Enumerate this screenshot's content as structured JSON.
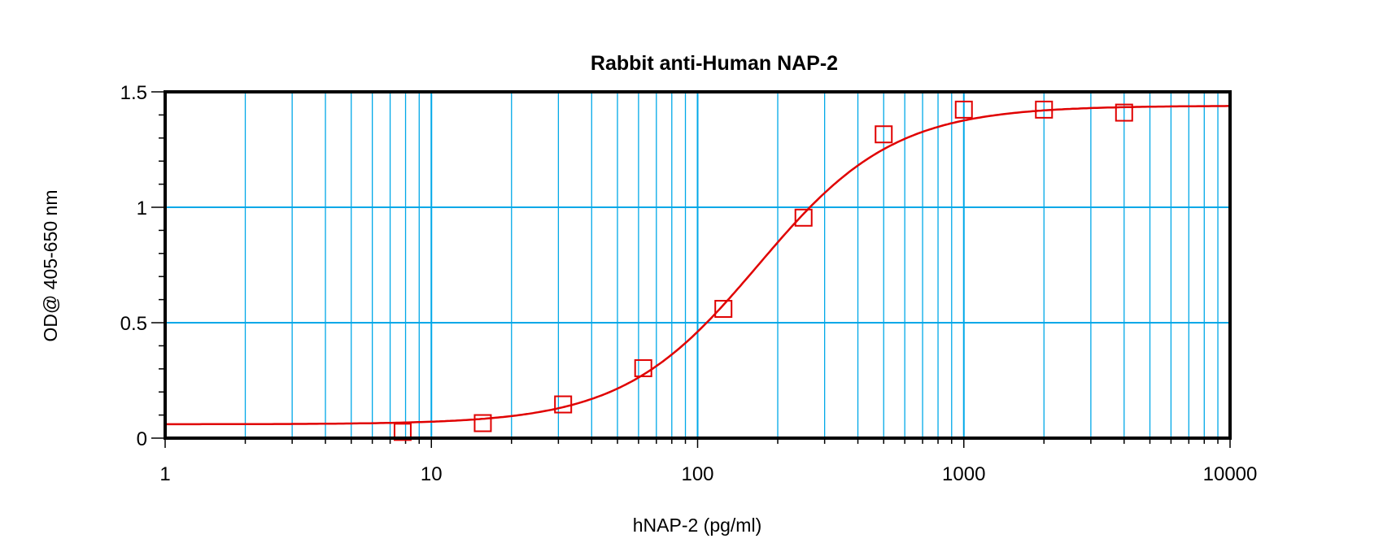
{
  "chart_data": {
    "type": "scatter",
    "title": "Rabbit anti-Human NAP-2",
    "xlabel": "hNAP-2 (pg/ml)",
    "ylabel": "OD@ 405-650 nm",
    "xscale": "log",
    "xlim": [
      1,
      10000
    ],
    "ylim": [
      0,
      1.5
    ],
    "xticks": [
      "1",
      "10",
      "100",
      "1000",
      "10000"
    ],
    "yticks": [
      "0",
      "0.5",
      "1",
      "1.5"
    ],
    "grid": true,
    "colors": {
      "series": "#e00000",
      "grid": "#00a8e8",
      "axis": "#000000"
    },
    "series": [
      {
        "marker": "open-square",
        "x": [
          7.8,
          15.6,
          31.25,
          62.5,
          125,
          250,
          500,
          1000,
          2000,
          4000
        ],
        "y": [
          0.027,
          0.065,
          0.146,
          0.303,
          0.56,
          0.955,
          1.316,
          1.423,
          1.423,
          1.41
        ]
      }
    ],
    "fit": {
      "model": "4PL",
      "bottom": 0.06,
      "top": 1.44,
      "ec50": 169,
      "hill": 1.7
    }
  }
}
